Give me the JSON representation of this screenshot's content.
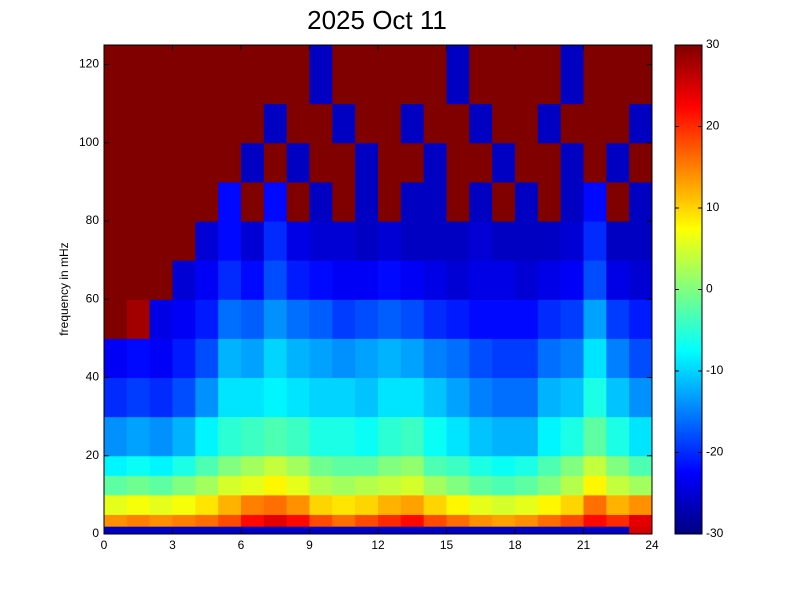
{
  "chart_data": {
    "type": "heatmap",
    "title": "2025 Oct 11",
    "y_label": "frequency in mHz",
    "colormap": "jet",
    "xbins": [
      0,
      1,
      2,
      3,
      4,
      5,
      6,
      7,
      8,
      9,
      10,
      11,
      12,
      13,
      14,
      15,
      16,
      17,
      18,
      19,
      20,
      21,
      22,
      23,
      24
    ],
    "ybins": [
      0,
      2,
      5,
      10,
      15,
      20,
      30,
      40,
      50,
      60,
      70,
      80,
      90,
      100,
      110,
      125
    ],
    "xlim": [
      0,
      24
    ],
    "xticks": [
      0,
      3,
      6,
      9,
      12,
      15,
      18,
      21,
      24
    ],
    "ylim": [
      0,
      125
    ],
    "yticks": [
      0,
      20,
      40,
      60,
      80,
      100,
      120
    ],
    "clim": [
      -30,
      30
    ],
    "colorbar_ticks": [
      -30,
      -20,
      -10,
      0,
      10,
      20,
      30
    ],
    "values": [
      [
        -26,
        -26,
        -26,
        -26,
        -26,
        -26,
        -26,
        -26,
        -26,
        -26,
        -26,
        -26,
        -26,
        -26,
        -26,
        -26,
        -26,
        -26,
        -26,
        -26,
        -26,
        -26,
        -26,
        25
      ],
      [
        14,
        15,
        14,
        15,
        16,
        18,
        22,
        24,
        22,
        18,
        16,
        18,
        20,
        22,
        18,
        16,
        14,
        13,
        14,
        16,
        18,
        22,
        20,
        24
      ],
      [
        6,
        7,
        6,
        7,
        9,
        12,
        15,
        16,
        14,
        10,
        9,
        10,
        12,
        13,
        10,
        8,
        6,
        5,
        6,
        8,
        10,
        16,
        12,
        14
      ],
      [
        -2,
        -1,
        -2,
        0,
        2,
        5,
        6,
        8,
        6,
        3,
        2,
        3,
        4,
        5,
        2,
        0,
        -2,
        -3,
        -2,
        0,
        3,
        8,
        4,
        2
      ],
      [
        -8,
        -7,
        -8,
        -6,
        -3,
        0,
        2,
        4,
        2,
        -1,
        -2,
        -2,
        0,
        1,
        -3,
        -4,
        -6,
        -7,
        -6,
        -3,
        0,
        4,
        0,
        -3
      ],
      [
        -14,
        -13,
        -14,
        -12,
        -8,
        -5,
        -4,
        -3,
        -4,
        -6,
        -6,
        -7,
        -5,
        -4,
        -7,
        -9,
        -11,
        -12,
        -12,
        -8,
        -6,
        -2,
        -6,
        -9
      ],
      [
        -20,
        -19,
        -20,
        -18,
        -14,
        -9,
        -9,
        -8,
        -9,
        -10,
        -10,
        -11,
        -9,
        -9,
        -11,
        -13,
        -15,
        -16,
        -16,
        -12,
        -11,
        -6,
        -11,
        -14
      ],
      [
        -23,
        -22,
        -23,
        -21,
        -18,
        -12,
        -13,
        -10,
        -12,
        -13,
        -14,
        -13,
        -12,
        -13,
        -15,
        -16,
        -18,
        -19,
        -19,
        -16,
        -15,
        -9,
        -15,
        -18
      ],
      [
        30,
        28,
        -24,
        -23,
        -21,
        -16,
        -17,
        -14,
        -16,
        -17,
        -19,
        -18,
        -17,
        -18,
        -20,
        -21,
        -22,
        -22,
        -22,
        -20,
        -19,
        -13,
        -19,
        -21
      ],
      [
        30,
        30,
        30,
        -25,
        -23,
        -20,
        -22,
        -18,
        -21,
        -22,
        -23,
        -23,
        -22,
        -23,
        -24,
        -25,
        -24,
        -24,
        -25,
        -24,
        -23,
        -18,
        -24,
        -25
      ],
      [
        30,
        30,
        30,
        30,
        -25,
        -22,
        -25,
        -20,
        -24,
        -25,
        -25,
        -26,
        -25,
        -26,
        -26,
        -26,
        -25,
        -26,
        -26,
        -26,
        -25,
        -20,
        -26,
        -26
      ],
      [
        30,
        30,
        30,
        30,
        30,
        -22,
        30,
        -22,
        30,
        -26,
        30,
        -26,
        30,
        -26,
        -26,
        30,
        -26,
        30,
        -26,
        30,
        -26,
        -22,
        30,
        -26
      ],
      [
        30,
        30,
        30,
        30,
        30,
        30,
        -26,
        30,
        -26,
        30,
        30,
        -26,
        30,
        30,
        -26,
        30,
        30,
        -26,
        30,
        30,
        -26,
        30,
        -26,
        30
      ],
      [
        30,
        30,
        30,
        30,
        30,
        30,
        30,
        -26,
        30,
        30,
        -26,
        30,
        30,
        -26,
        30,
        30,
        -26,
        30,
        30,
        -26,
        30,
        30,
        30,
        -26
      ],
      [
        30,
        30,
        30,
        30,
        30,
        30,
        30,
        30,
        30,
        -26,
        30,
        30,
        30,
        30,
        30,
        -26,
        30,
        30,
        30,
        30,
        -26,
        30,
        30,
        30
      ]
    ]
  }
}
